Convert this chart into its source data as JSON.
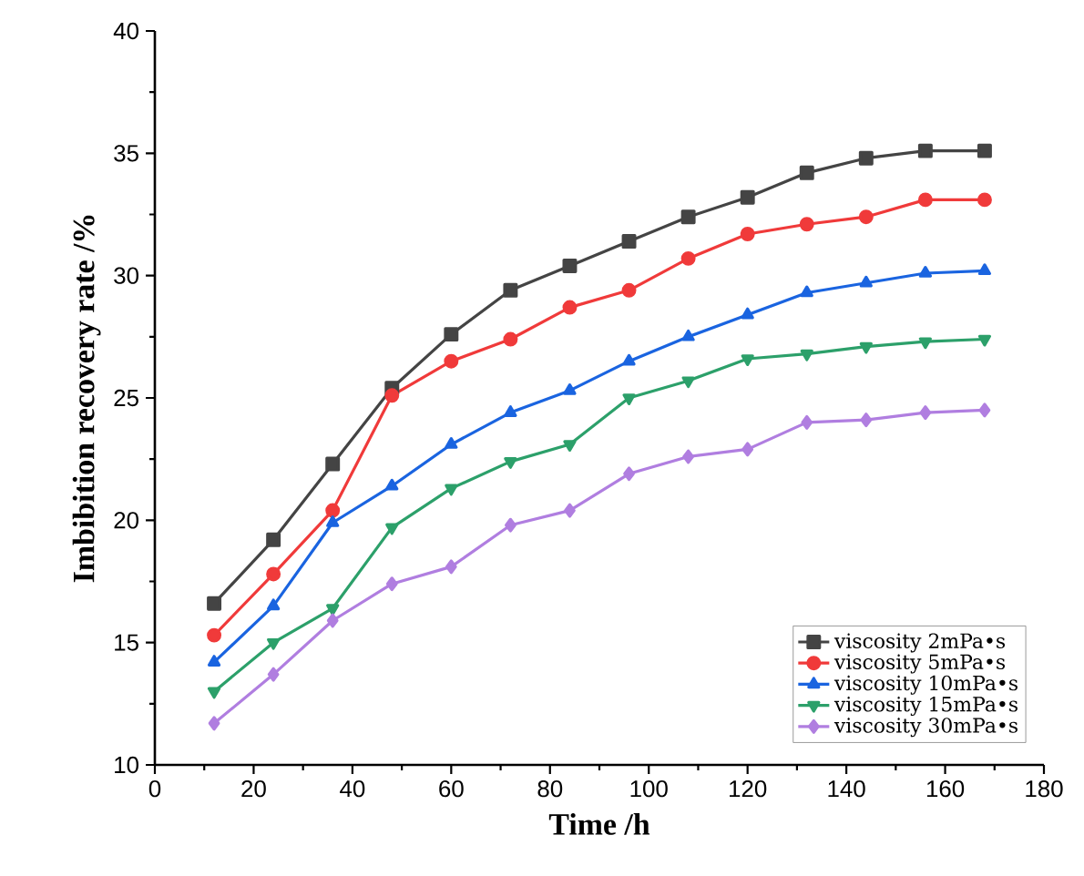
{
  "chart_data": {
    "type": "line",
    "xlabel": "Time /h",
    "ylabel": "Imbibition recovery rate /%",
    "x": [
      12,
      24,
      36,
      48,
      60,
      72,
      84,
      96,
      108,
      120,
      132,
      144,
      156,
      168
    ],
    "series": [
      {
        "name": "viscosity 2mPa•s",
        "color": "#444444",
        "marker": "square",
        "values": [
          16.6,
          19.2,
          22.3,
          25.4,
          27.6,
          29.4,
          30.4,
          31.4,
          32.4,
          33.2,
          34.2,
          34.8,
          35.1,
          35.1
        ]
      },
      {
        "name": "viscosity 5mPa•s",
        "color": "#f03a3a",
        "marker": "circle",
        "values": [
          15.3,
          17.8,
          20.4,
          25.1,
          26.5,
          27.4,
          28.7,
          29.4,
          30.7,
          31.7,
          32.1,
          32.4,
          33.1,
          33.1
        ]
      },
      {
        "name": "viscosity 10mPa•s",
        "color": "#1a64e0",
        "marker": "triangle",
        "values": [
          14.2,
          16.5,
          19.9,
          21.4,
          23.1,
          24.4,
          25.3,
          26.5,
          27.5,
          28.4,
          29.3,
          29.7,
          30.1,
          30.2
        ]
      },
      {
        "name": "viscosity 15mPa•s",
        "color": "#2ca06a",
        "marker": "triangle down",
        "values": [
          13.0,
          15.0,
          16.4,
          19.7,
          21.3,
          22.4,
          23.1,
          25.0,
          25.7,
          26.6,
          26.8,
          27.1,
          27.3,
          27.4
        ]
      },
      {
        "name": "viscosity 30mPa•s",
        "color": "#b07ee0",
        "marker": "diamond",
        "values": [
          11.7,
          13.7,
          15.9,
          17.4,
          18.1,
          19.8,
          20.4,
          21.9,
          22.6,
          22.9,
          24.0,
          24.1,
          24.4,
          24.5
        ]
      }
    ],
    "xlim": [
      0,
      180
    ],
    "xticks": [
      0,
      20,
      40,
      60,
      80,
      100,
      120,
      140,
      160,
      180
    ],
    "ylim": [
      10,
      40
    ],
    "yticks": [
      10,
      15,
      20,
      25,
      30,
      35,
      40
    ],
    "grid": false,
    "legend": "bottom right",
    "line_style": "solid"
  }
}
